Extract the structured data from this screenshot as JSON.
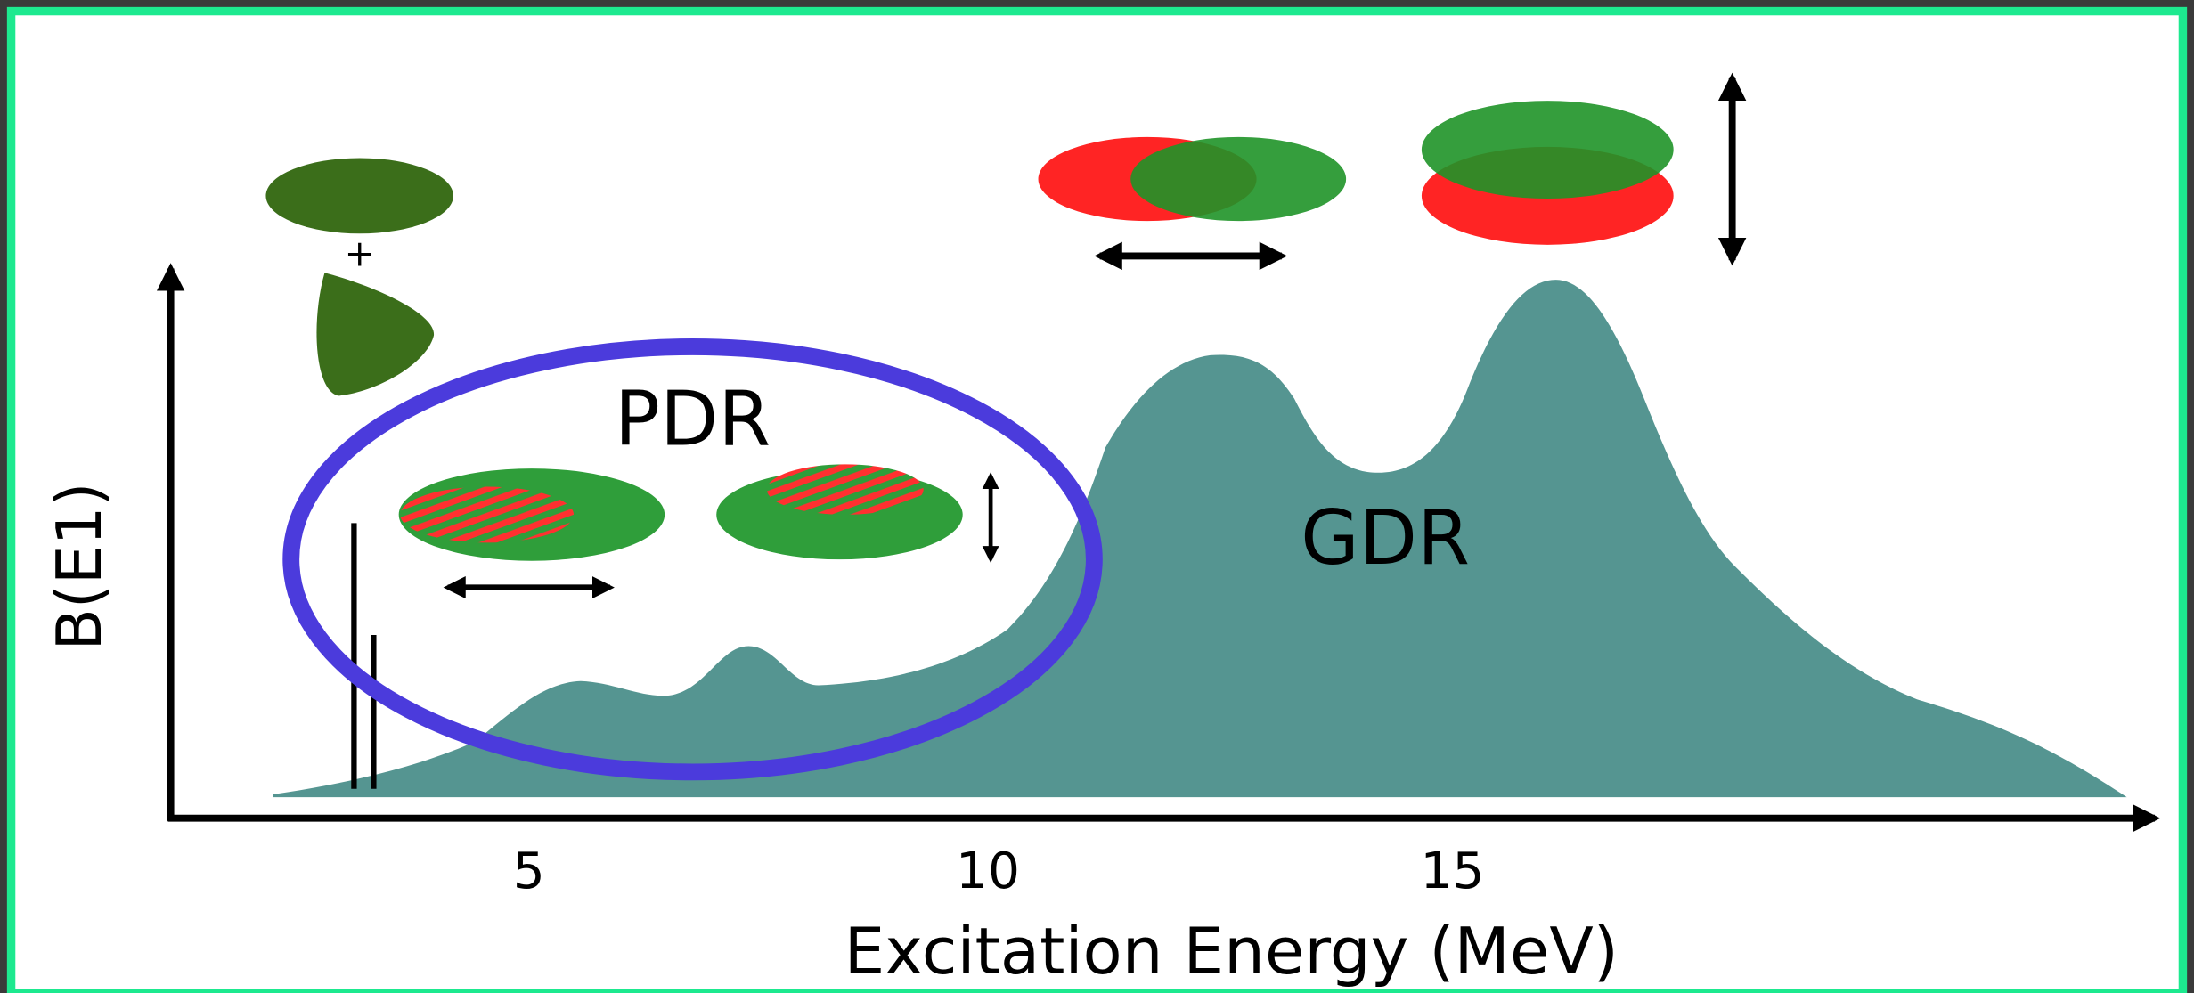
{
  "labels": {
    "pdr": "PDR",
    "gdr": "GDR",
    "plus": "+"
  },
  "y_axis": {
    "label": "B(E1)"
  },
  "x_axis": {
    "label": "Excitation Energy (MeV)",
    "ticks": [
      "5",
      "10",
      "15"
    ]
  }
}
